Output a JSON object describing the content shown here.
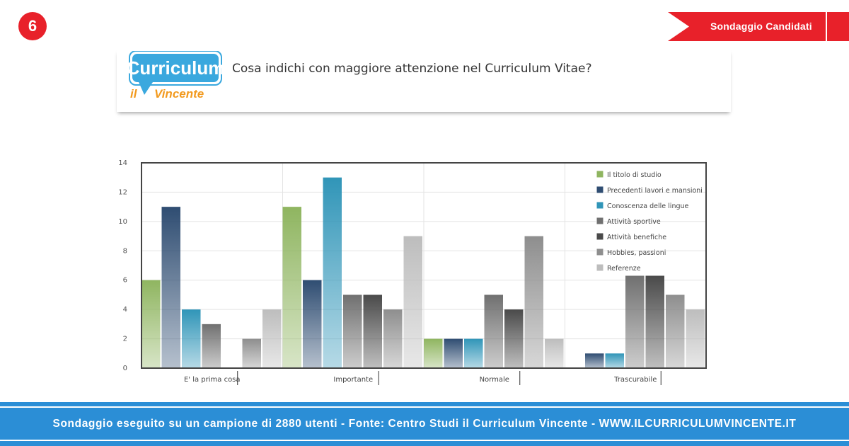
{
  "badge": {
    "number": "6"
  },
  "ribbon": {
    "label": "Sondaggio Candidati"
  },
  "logo": {
    "main": "Curriculum",
    "sub_il": "il",
    "sub_name": "Vincente"
  },
  "question": "Cosa indichi con maggiore attenzione nel Curriculum Vitae?",
  "footer": {
    "text": "Sondaggio eseguito su un campione di 2880 utenti - Fonte: Centro Studi il Curriculum Vincente - WWW.ILCURRICULUMVINCENTE.IT"
  },
  "colors": {
    "badge": "#e8212a",
    "ribbon": "#e8212a",
    "footer": "#2b8ed6",
    "logo_blue": "#3aa8de",
    "logo_orange": "#f29a1f"
  },
  "chart_data": {
    "type": "bar",
    "categories": [
      "E' la prima cosa",
      "Importante",
      "Normale",
      "Trascurabile"
    ],
    "ylim": [
      0,
      14
    ],
    "yticks": [
      0,
      2,
      4,
      6,
      8,
      10,
      12,
      14
    ],
    "grid": true,
    "legend_position": "top-right",
    "series": [
      {
        "name": "Il titolo di studio",
        "color": "#8fb560",
        "values": [
          6,
          11,
          2,
          0
        ]
      },
      {
        "name": "Precedenti lavori e mansioni",
        "color": "#2f4d72",
        "values": [
          11,
          6,
          2,
          1
        ]
      },
      {
        "name": "Conoscenza delle lingue",
        "color": "#3095b8",
        "values": [
          4,
          13,
          2,
          1
        ]
      },
      {
        "name": "Attività sportive",
        "color": "#707070",
        "values": [
          3,
          5,
          5,
          6.3
        ]
      },
      {
        "name": "Attività benefiche",
        "color": "#4a4a4a",
        "values": [
          0,
          5,
          4,
          6.3
        ]
      },
      {
        "name": "Hobbies, passioni",
        "color": "#8e8e8e",
        "values": [
          2,
          4,
          9,
          5
        ]
      },
      {
        "name": "Referenze",
        "color": "#bdbdbd",
        "values": [
          4,
          9,
          2,
          4
        ]
      }
    ]
  }
}
